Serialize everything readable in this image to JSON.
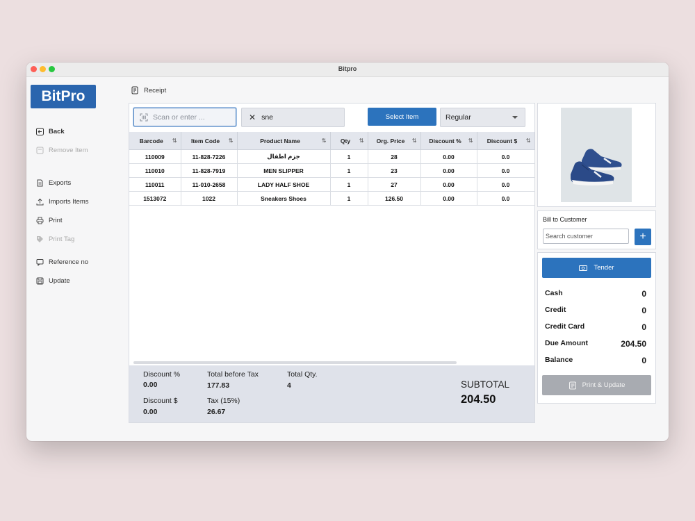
{
  "window": {
    "title": "Bitpro"
  },
  "sidebar": {
    "logo": "BitPro",
    "items": [
      {
        "label": "Back",
        "icon": "back-arrow-icon"
      },
      {
        "label": "Remove Item",
        "icon": "trash-icon"
      },
      {
        "label": "Exports",
        "icon": "document-icon"
      },
      {
        "label": "Imports Items",
        "icon": "upload-icon"
      },
      {
        "label": "Print",
        "icon": "printer-icon"
      },
      {
        "label": "Print Tag",
        "icon": "tag-icon"
      },
      {
        "label": "Reference no",
        "icon": "message-icon"
      },
      {
        "label": "Update",
        "icon": "save-icon"
      }
    ]
  },
  "header": {
    "tab_label": "Receipt"
  },
  "toolbar": {
    "scan_placeholder": "Scan or enter ...",
    "search_value": "sne",
    "select_item_label": "Select Item",
    "price_type": "Regular"
  },
  "table": {
    "columns": [
      "Barcode",
      "Item Code",
      "Product Name",
      "Qty",
      "Org. Price",
      "Discount %",
      "Discount $"
    ],
    "rows": [
      [
        "110009",
        "11-828-7226",
        "جزم اطفال",
        "1",
        "28",
        "0.00",
        "0.0"
      ],
      [
        "110010",
        "11-828-7919",
        "MEN SLIPPER",
        "1",
        "23",
        "0.00",
        "0.0"
      ],
      [
        "110011",
        "11-010-2658",
        "LADY HALF SHOE",
        "1",
        "27",
        "0.00",
        "0.0"
      ],
      [
        "1513072",
        "1022",
        "Sneakers Shoes",
        "1",
        "126.50",
        "0.00",
        "0.0"
      ]
    ]
  },
  "summary": {
    "discount_pct_label": "Discount %",
    "discount_pct_value": "0.00",
    "discount_amt_label": "Discount $",
    "discount_amt_value": "0.00",
    "total_before_tax_label": "Total before Tax",
    "total_before_tax_value": "177.83",
    "tax_label": "Tax (15%)",
    "tax_value": "26.67",
    "total_qty_label": "Total Qty.",
    "total_qty_value": "4",
    "subtotal_label": "SUBTOTAL",
    "subtotal_value": "204.50"
  },
  "customer": {
    "title": "Bill to Customer",
    "search_placeholder": "Search customer",
    "add_label": "+"
  },
  "payment": {
    "tender_label": "Tender",
    "rows": [
      {
        "label": "Cash",
        "value": "0"
      },
      {
        "label": "Credit",
        "value": "0"
      },
      {
        "label": "Credit Card",
        "value": "0"
      },
      {
        "label": "Due Amount",
        "value": "204.50"
      },
      {
        "label": "Balance",
        "value": "0"
      }
    ],
    "print_update_label": "Print & Update"
  },
  "colors": {
    "accent": "#2c73bd",
    "logo_bg": "#2a65ae",
    "header_bg": "#e3e6ed",
    "disabled_button": "#a8abb1"
  }
}
